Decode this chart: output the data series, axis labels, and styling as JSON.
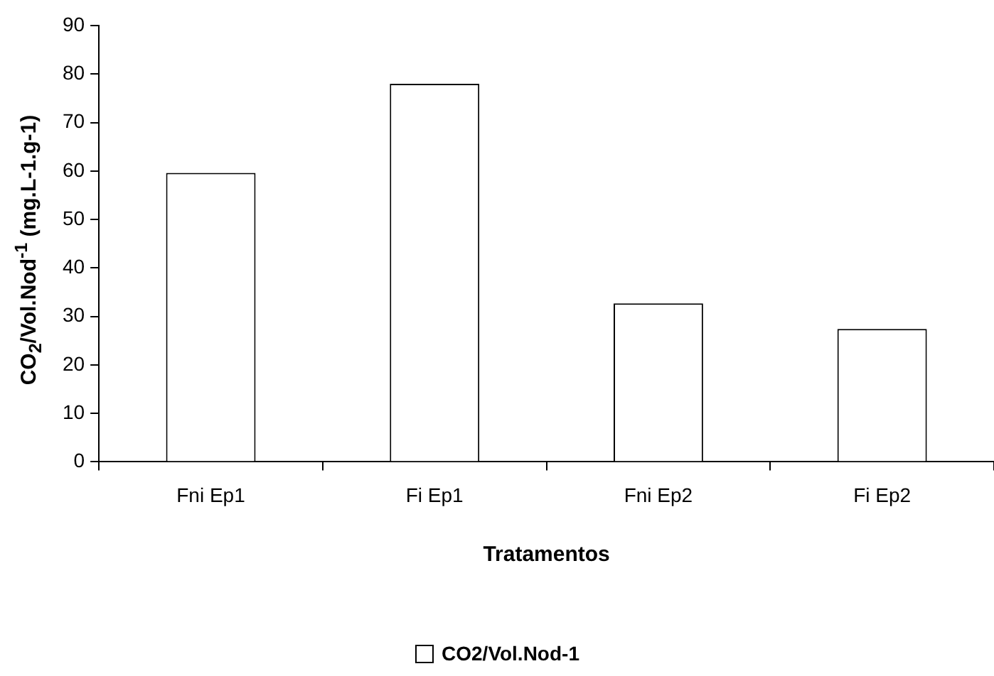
{
  "chart_data": {
    "type": "bar",
    "xlabel": "Tratamentos",
    "ylabel": "CO$_{2}$/Vol.Nod$^{-1}$ (mg.L-1.g-1)",
    "categories": [
      "Fni Ep1",
      "Fi Ep1",
      "Fni Ep2",
      "Fi Ep2"
    ],
    "series": [
      {
        "name": "CO2/Vol.Nod-1",
        "color": "#ffffff",
        "values": [
          59.6,
          78,
          32.7,
          27.4
        ]
      }
    ],
    "ylim": [
      0,
      90
    ],
    "yticks": [
      0,
      10,
      20,
      30,
      40,
      50,
      60,
      70,
      80,
      90
    ],
    "grid": false,
    "legend": "bottom"
  }
}
